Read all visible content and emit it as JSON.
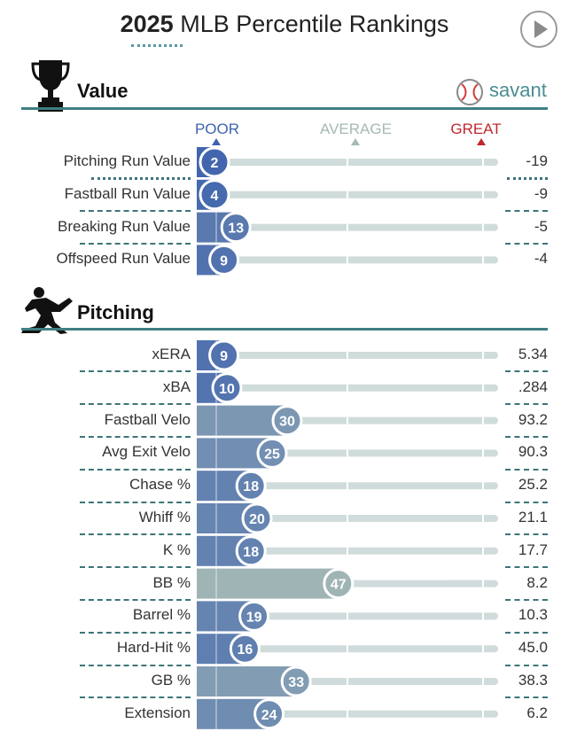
{
  "header": {
    "title_year": "2025",
    "title_rest": " MLB Percentile Rankings"
  },
  "brand": {
    "name": "savant",
    "icon": "baseball-icon"
  },
  "legend": {
    "poor": "POOR",
    "average": "AVERAGE",
    "great": "GREAT"
  },
  "colors": {
    "poor": "#3e63ad",
    "average": "#a5b9b6",
    "great": "#c0282d",
    "track": "#d0dcdb",
    "rule": "#3f7f83",
    "brand": "#4b8d92"
  },
  "sections": [
    {
      "title": "Value",
      "icon": "trophy-icon",
      "rows": [
        {
          "label": "Pitching Run Value",
          "percentile": 2,
          "value": "-19"
        },
        {
          "label": "Fastball Run Value",
          "percentile": 4,
          "value": "-9"
        },
        {
          "label": "Breaking Run Value",
          "percentile": 13,
          "value": "-5"
        },
        {
          "label": "Offspeed Run Value",
          "percentile": 9,
          "value": "-4"
        }
      ]
    },
    {
      "title": "Pitching",
      "icon": "pitcher-icon",
      "rows": [
        {
          "label": "xERA",
          "percentile": 9,
          "value": "5.34"
        },
        {
          "label": "xBA",
          "percentile": 10,
          "value": ".284"
        },
        {
          "label": "Fastball Velo",
          "percentile": 30,
          "value": "93.2"
        },
        {
          "label": "Avg Exit Velo",
          "percentile": 25,
          "value": "90.3"
        },
        {
          "label": "Chase %",
          "percentile": 18,
          "value": "25.2"
        },
        {
          "label": "Whiff %",
          "percentile": 20,
          "value": "21.1"
        },
        {
          "label": "K %",
          "percentile": 18,
          "value": "17.7"
        },
        {
          "label": "BB %",
          "percentile": 47,
          "value": "8.2"
        },
        {
          "label": "Barrel %",
          "percentile": 19,
          "value": "10.3"
        },
        {
          "label": "Hard-Hit %",
          "percentile": 16,
          "value": "45.0"
        },
        {
          "label": "GB %",
          "percentile": 33,
          "value": "38.3"
        },
        {
          "label": "Extension",
          "percentile": 24,
          "value": "6.2"
        }
      ]
    }
  ],
  "chart_data": {
    "type": "bar",
    "orientation": "horizontal",
    "xlim": [
      0,
      100
    ],
    "categories": [
      "Pitching Run Value",
      "Fastball Run Value",
      "Breaking Run Value",
      "Offspeed Run Value",
      "xERA",
      "xBA",
      "Fastball Velo",
      "Avg Exit Velo",
      "Chase %",
      "Whiff %",
      "K %",
      "BB %",
      "Barrel %",
      "Hard-Hit %",
      "GB %",
      "Extension"
    ],
    "values": [
      2,
      4,
      13,
      9,
      9,
      10,
      30,
      25,
      18,
      20,
      18,
      47,
      19,
      16,
      33,
      24
    ],
    "grid": true
  }
}
